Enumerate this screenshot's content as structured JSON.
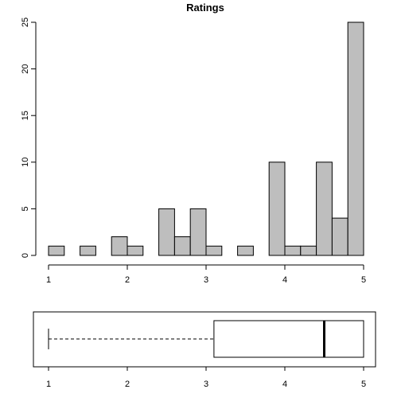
{
  "chart_data": [
    {
      "type": "histogram",
      "title": "Ratings",
      "xlabel": "",
      "ylabel": "",
      "xlim": [
        1,
        5
      ],
      "ylim": [
        0,
        25
      ],
      "x_ticks": [
        "1",
        "2",
        "3",
        "4",
        "5"
      ],
      "y_ticks": [
        "0",
        "5",
        "10",
        "15",
        "20",
        "25"
      ],
      "bin_width": 0.2,
      "bins": [
        {
          "start": 1.0,
          "end": 1.2,
          "count": 1
        },
        {
          "start": 1.2,
          "end": 1.4,
          "count": 0
        },
        {
          "start": 1.4,
          "end": 1.6,
          "count": 1
        },
        {
          "start": 1.6,
          "end": 1.8,
          "count": 0
        },
        {
          "start": 1.8,
          "end": 2.0,
          "count": 2
        },
        {
          "start": 2.0,
          "end": 2.2,
          "count": 1
        },
        {
          "start": 2.2,
          "end": 2.4,
          "count": 0
        },
        {
          "start": 2.4,
          "end": 2.6,
          "count": 5
        },
        {
          "start": 2.6,
          "end": 2.8,
          "count": 2
        },
        {
          "start": 2.8,
          "end": 3.0,
          "count": 5
        },
        {
          "start": 3.0,
          "end": 3.2,
          "count": 1
        },
        {
          "start": 3.2,
          "end": 3.4,
          "count": 0
        },
        {
          "start": 3.4,
          "end": 3.6,
          "count": 1
        },
        {
          "start": 3.6,
          "end": 3.8,
          "count": 0
        },
        {
          "start": 3.8,
          "end": 4.0,
          "count": 10
        },
        {
          "start": 4.0,
          "end": 4.2,
          "count": 1
        },
        {
          "start": 4.2,
          "end": 4.4,
          "count": 1
        },
        {
          "start": 4.4,
          "end": 4.6,
          "count": 10
        },
        {
          "start": 4.6,
          "end": 4.8,
          "count": 4
        },
        {
          "start": 4.8,
          "end": 5.0,
          "count": 25
        }
      ],
      "bar_color": "#bebebe",
      "grid": false
    },
    {
      "type": "boxplot",
      "orientation": "horizontal",
      "xlim": [
        1,
        5
      ],
      "x_ticks": [
        "1",
        "2",
        "3",
        "4",
        "5"
      ],
      "whisker_low": 1.0,
      "q1": 3.1,
      "median": 4.5,
      "q3": 5.0,
      "whisker_high": 5.0
    }
  ]
}
